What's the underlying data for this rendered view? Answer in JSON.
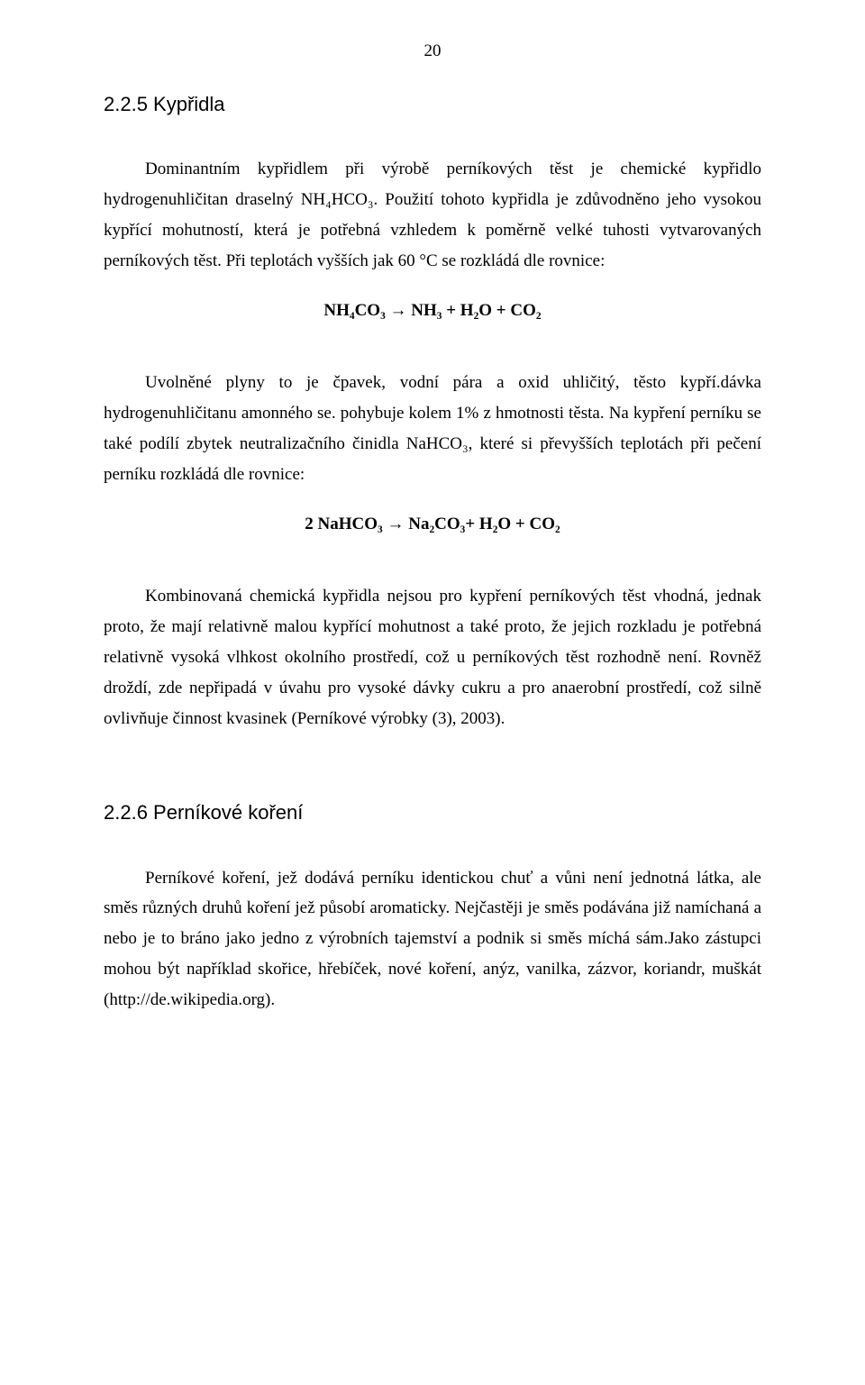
{
  "page_number": "20",
  "section1": {
    "heading": "2.2.5 Kypřidla",
    "para1": "Dominantním kypřidlem při výrobě perníkových těst je chemické kypřidlo hydrogenuhličitan draselný NH₄HCO₃. Použití tohoto kypřidla je zdůvodněno jeho vysokou kypřící mohutností, která je potřebná vzhledem k poměrně velké tuhosti vytvarovaných perníkových těst. Při teplotách vyšších jak 60 °C se rozkládá dle rovnice:",
    "equation1": "NH₄CO₃   →   NH₃  +  H₂O + CO₂",
    "para2": "Uvolněné plyny to je čpavek, vodní pára a oxid uhličitý, těsto kypří.dávka hydrogenuhličitanu amonného se. pohybuje kolem 1% z hmotnosti těsta. Na kypření perníku se také podílí zbytek neutralizačního činidla NaHCO₃, které si převyšších teplotách při pečení perníku rozkládá dle rovnice:",
    "equation2": "2 NaHCO₃   →   Na₂CO₃+ H₂O  +  CO₂",
    "para3": "Kombinovaná chemická kypřidla nejsou pro kypření perníkových těst vhodná, jednak proto, že mají relativně malou kypřící mohutnost a také proto, že jejich rozkladu je potřebná relativně vysoká vlhkost okolního prostředí, což u perníkových těst rozhodně není. Rovněž droždí, zde nepřipadá v úvahu pro vysoké dávky cukru a pro anaerobní prostředí, což silně ovlivňuje činnost kvasinek (Perníkové výrobky (3), 2003)."
  },
  "section2": {
    "heading": "2.2.6 Perníkové koření",
    "para1": "Perníkové koření, jež dodává perníku identickou chuť a vůni není jednotná látka, ale směs různých druhů koření jež působí aromaticky. Nejčastěji je směs podávána již namíchaná a nebo je to bráno jako jedno z výrobních tajemství a podnik si směs míchá sám.Jako zástupci mohou být například skořice, hřebíček, nové koření, anýz, vanilka, zázvor, koriandr, muškát (http://de.wikipedia.org)."
  }
}
